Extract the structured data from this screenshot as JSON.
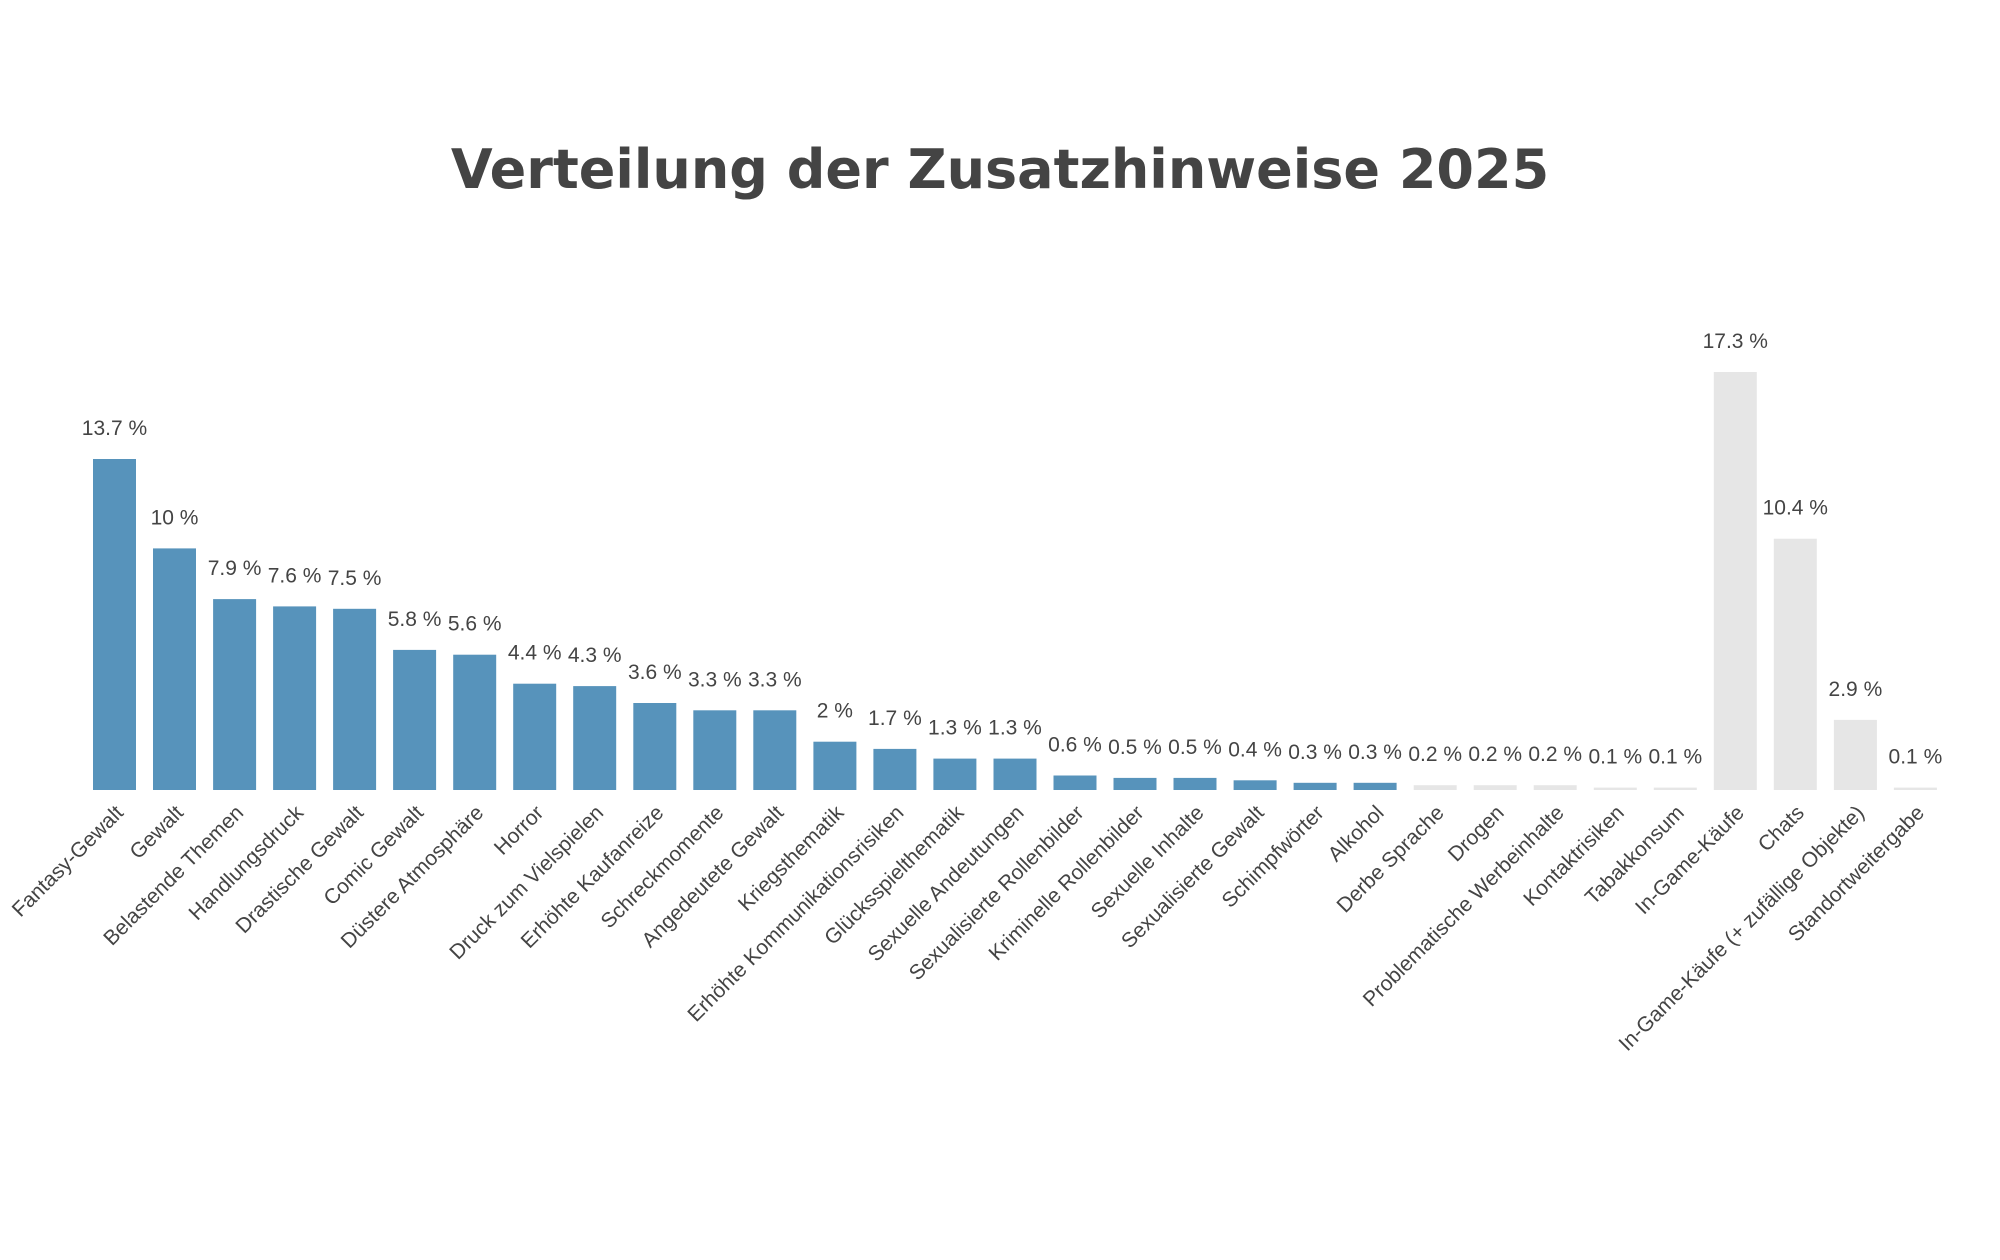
{
  "chart_data": {
    "type": "bar",
    "title": "Verteilung der Zusatzhinweise 2025",
    "xlabel": "",
    "ylabel": "",
    "ylim": [
      0,
      17.3
    ],
    "grid": false,
    "legend": "none",
    "unit": "%",
    "categories": [
      "Fantasy-Gewalt",
      "Gewalt",
      "Belastende Themen",
      "Handlungsdruck",
      "Drastische Gewalt",
      "Comic Gewalt",
      "Düstere Atmosphäre",
      "Horror",
      "Druck zum Vielspielen",
      "Erhöhte Kaufanreize",
      "Schreckmomente",
      "Angedeutete Gewalt",
      "Kriegsthematik",
      "Erhöhte Kommunikationsrisiken",
      "Glücksspielthematik",
      "Sexuelle Andeutungen",
      "Sexualisierte Rollenbilder",
      "Kriminelle Rollenbilder",
      "Sexuelle Inhalte",
      "Sexualisierte Gewalt",
      "Schimpfwörter",
      "Alkohol",
      "Derbe Sprache",
      "Drogen",
      "Problematische Werbeinhalte",
      "Kontaktrisiken",
      "Tabakkonsum",
      "In-Game-Käufe",
      "Chats",
      "In-Game-Käufe (+ zufällige Objekte)",
      "Standortweitergabe"
    ],
    "values": [
      13.7,
      10,
      7.9,
      7.6,
      7.5,
      5.8,
      5.6,
      4.4,
      4.3,
      3.6,
      3.3,
      3.3,
      2,
      1.7,
      1.3,
      1.3,
      0.6,
      0.5,
      0.5,
      0.4,
      0.3,
      0.3,
      0.2,
      0.2,
      0.2,
      0.1,
      0.1,
      17.3,
      10.4,
      2.9,
      0.1
    ],
    "data_labels": [
      "13.7 %",
      "10 %",
      "7.9 %",
      "7.6 %",
      "7.5 %",
      "5.8 %",
      "5.6 %",
      "4.4 %",
      "4.3 %",
      "3.6 %",
      "3.3 %",
      "3.3 %",
      "2 %",
      "1.7 %",
      "1.3 %",
      "1.3 %",
      "0.6 %",
      "0.5 %",
      "0.5 %",
      "0.4 %",
      "0.3 %",
      "0.3 %",
      "0.2 %",
      "0.2 %",
      "0.2 %",
      "0.1 %",
      "0.1 %",
      "17.3 %",
      "10.4 %",
      "2.9 %",
      "0.1 %"
    ],
    "bar_colors": [
      "#5793bb",
      "#5793bb",
      "#5793bb",
      "#5793bb",
      "#5793bb",
      "#5793bb",
      "#5793bb",
      "#5793bb",
      "#5793bb",
      "#5793bb",
      "#5793bb",
      "#5793bb",
      "#5793bb",
      "#5793bb",
      "#5793bb",
      "#5793bb",
      "#5793bb",
      "#5793bb",
      "#5793bb",
      "#5793bb",
      "#5793bb",
      "#5793bb",
      "#e6e6e6",
      "#e6e6e6",
      "#e6e6e6",
      "#e6e6e6",
      "#e6e6e6",
      "#e6e6e6",
      "#e6e6e6",
      "#e6e6e6",
      "#e6e6e6"
    ]
  },
  "colors": {
    "primary_bar": "#5793bb",
    "secondary_bar": "#e6e6e6",
    "text": "#444444"
  }
}
